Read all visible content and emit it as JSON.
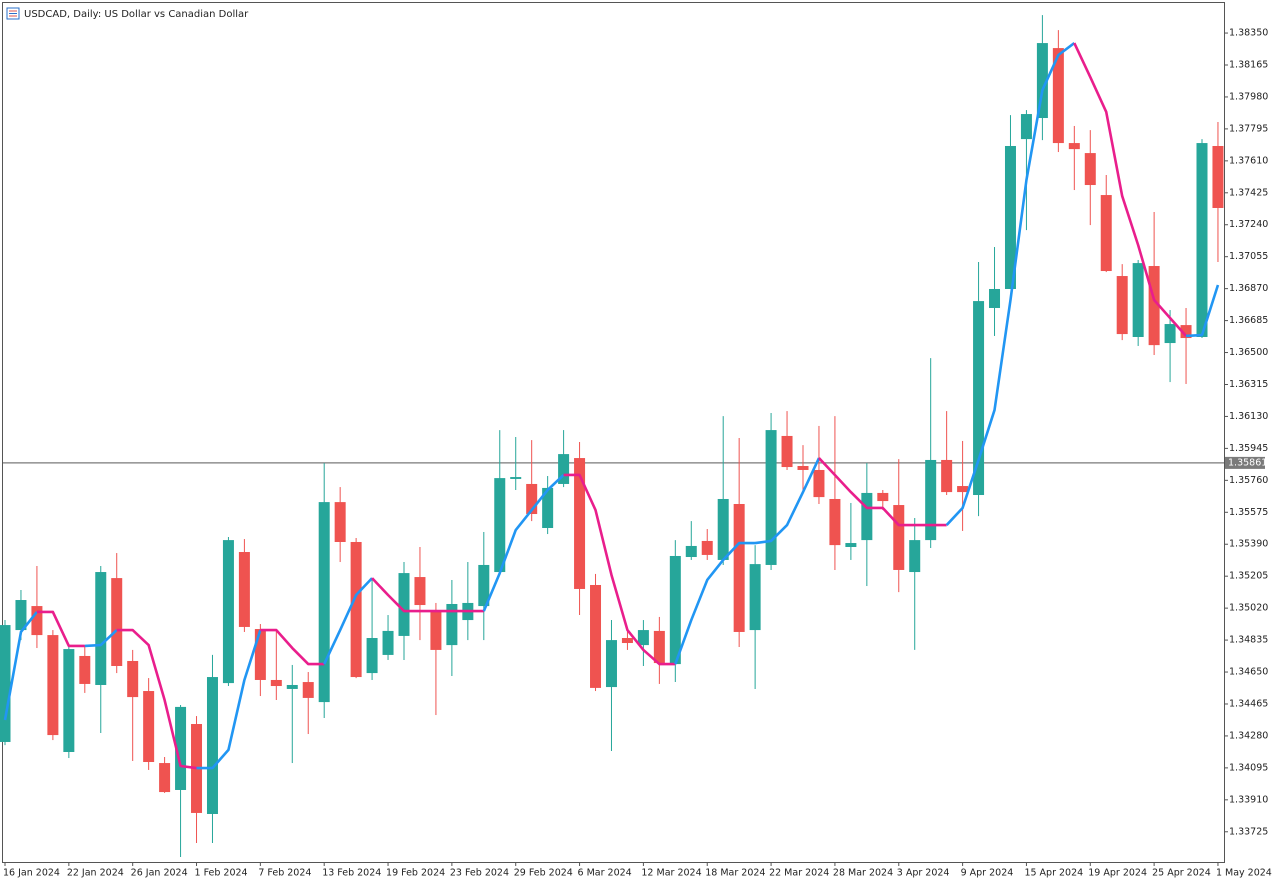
{
  "chart_data": {
    "type": "candlestick",
    "title": "USDCAD, Daily:  US Dollar vs Canadian Dollar",
    "categories": [
      "16 Jan 2024",
      null,
      null,
      null,
      "22 Jan 2024",
      null,
      null,
      null,
      "26 Jan 2024",
      null,
      null,
      null,
      "1 Feb 2024",
      null,
      null,
      null,
      "7 Feb 2024",
      null,
      null,
      null,
      "13 Feb 2024",
      null,
      null,
      null,
      "19 Feb 2024",
      null,
      null,
      null,
      "23 Feb 2024",
      null,
      null,
      null,
      "29 Feb 2024",
      null,
      null,
      null,
      "6 Mar 2024",
      null,
      null,
      null,
      "12 Mar 2024",
      null,
      null,
      null,
      "18 Mar 2024",
      null,
      null,
      null,
      "22 Mar 2024",
      null,
      null,
      null,
      "28 Mar 2024",
      null,
      null,
      null,
      "3 Apr 2024",
      null,
      null,
      null,
      "9 Apr 2024",
      null,
      null,
      null,
      "15 Apr 2024",
      null,
      null,
      null,
      "19 Apr 2024",
      null,
      null,
      null,
      "25 Apr 2024",
      null,
      null,
      null,
      "1 May 2024"
    ],
    "open": [
      1.34245,
      1.34893,
      1.35032,
      1.34864,
      1.34187,
      1.34743,
      1.34575,
      1.35194,
      1.34714,
      1.3454,
      1.34123,
      1.33967,
      1.34349,
      1.33828,
      1.34586,
      1.35345,
      1.34899,
      1.34604,
      1.34552,
      1.34592,
      1.34476,
      1.35634,
      1.35403,
      1.34644,
      1.34749,
      1.34859,
      1.352,
      1.35009,
      1.34806,
      1.34951,
      1.35032,
      1.35229,
      1.35768,
      1.35739,
      1.35484,
      1.35739,
      1.35889,
      1.35154,
      1.34563,
      1.34847,
      1.34806,
      1.34888,
      1.34696,
      1.35316,
      1.35409,
      1.35299,
      1.35623,
      1.34893,
      1.3527,
      1.36017,
      1.35843,
      1.3582,
      1.35652,
      1.35374,
      1.35414,
      1.35687,
      1.35617,
      1.35229,
      1.35414,
      1.35878,
      1.35727,
      1.35675,
      1.36758,
      1.36868,
      1.37736,
      1.37858,
      1.38263,
      1.37713,
      1.37655,
      1.37412,
      1.36943,
      1.3659,
      1.37001,
      1.36555,
      1.36659,
      1.3659,
      1.37696
    ],
    "high": [
      1.34951,
      1.35125,
      1.35264,
      1.34893,
      1.34806,
      1.34806,
      1.35264,
      1.35339,
      1.34778,
      1.34615,
      1.34158,
      1.34459,
      1.34395,
      1.34749,
      1.35432,
      1.3542,
      1.34928,
      1.34893,
      1.34691,
      1.3465,
      1.3586,
      1.35721,
      1.35426,
      1.35194,
      1.3498,
      1.35287,
      1.35374,
      1.3505,
      1.35183,
      1.35287,
      1.35461,
      1.36051,
      1.36011,
      1.35993,
      1.35785,
      1.36051,
      1.35982,
      1.35218,
      1.34951,
      1.34893,
      1.34951,
      1.34969,
      1.35414,
      1.35524,
      1.35478,
      1.36132,
      1.36005,
      1.35385,
      1.3615,
      1.36161,
      1.35964,
      1.36075,
      1.36132,
      1.35629,
      1.3586,
      1.35704,
      1.35883,
      1.35542,
      1.36468,
      1.36161,
      1.35988,
      1.37024,
      1.37111,
      1.37875,
      1.37904,
      1.38454,
      1.38367,
      1.37812,
      1.37788,
      1.37528,
      1.37012,
      1.37036,
      1.37314,
      1.36746,
      1.36758,
      1.37736,
      1.37835
    ],
    "low": [
      1.34227,
      1.34835,
      1.34789,
      1.34256,
      1.34152,
      1.34529,
      1.34297,
      1.34644,
      1.34135,
      1.34083,
      1.3395,
      1.33579,
      1.3366,
      1.3366,
      1.34569,
      1.34882,
      1.34511,
      1.34488,
      1.34123,
      1.34291,
      1.34384,
      1.35287,
      1.34615,
      1.34604,
      1.3472,
      1.3472,
      1.34835,
      1.34401,
      1.34627,
      1.34835,
      1.34835,
      1.35212,
      1.35704,
      1.35524,
      1.35449,
      1.35721,
      1.3498,
      1.3454,
      1.34193,
      1.34778,
      1.34685,
      1.34581,
      1.34592,
      1.35299,
      1.35299,
      1.3527,
      1.34795,
      1.34552,
      1.35241,
      1.3582,
      1.35704,
      1.35623,
      1.35241,
      1.35299,
      1.35148,
      1.35588,
      1.35113,
      1.34778,
      1.35368,
      1.35675,
      1.35467,
      1.35553,
      1.36596,
      1.36868,
      1.37209,
      1.3773,
      1.37661,
      1.37441,
      1.37238,
      1.36966,
      1.36572,
      1.36538,
      1.36486,
      1.36329,
      1.36318,
      1.36584,
      1.37024
    ],
    "close": [
      1.34922,
      1.35067,
      1.34864,
      1.34285,
      1.34783,
      1.34581,
      1.35229,
      1.34685,
      1.34505,
      1.34129,
      1.33955,
      1.34448,
      1.33834,
      1.34621,
      1.35414,
      1.34911,
      1.34604,
      1.34569,
      1.34575,
      1.345,
      1.35634,
      1.35403,
      1.34621,
      1.34847,
      1.34888,
      1.35223,
      1.35038,
      1.34778,
      1.35044,
      1.3505,
      1.3527,
      1.35773,
      1.35779,
      1.35565,
      1.35716,
      1.35912,
      1.35131,
      1.34558,
      1.34835,
      1.34818,
      1.34893,
      1.34702,
      1.35322,
      1.3538,
      1.35328,
      1.35652,
      1.34882,
      1.35275,
      1.36051,
      1.35837,
      1.3582,
      1.35663,
      1.35385,
      1.35397,
      1.35687,
      1.3564,
      1.35241,
      1.35414,
      1.35878,
      1.35692,
      1.35692,
      1.36798,
      1.36868,
      1.37696,
      1.37881,
      1.38292,
      1.37713,
      1.37678,
      1.3747,
      1.36972,
      1.36607,
      1.37018,
      1.36543,
      1.36665,
      1.36584,
      1.37713,
      1.37337
    ],
    "up_color": "#26a69a",
    "down_color": "#ef5350",
    "line": {
      "values": [
        1.34372,
        1.34882,
        1.34998,
        1.34998,
        1.34801,
        1.34801,
        1.34806,
        1.34893,
        1.34893,
        1.34806,
        1.34488,
        1.34106,
        1.34094,
        1.34094,
        1.34199,
        1.34604,
        1.34893,
        1.34893,
        1.34789,
        1.34696,
        1.34696,
        1.34893,
        1.35096,
        1.35194,
        1.35096,
        1.35003,
        1.35003,
        1.35003,
        1.35003,
        1.35003,
        1.35003,
        1.35223,
        1.35472,
        1.35588,
        1.35704,
        1.35791,
        1.35791,
        1.35588,
        1.35212,
        1.34893,
        1.34778,
        1.34696,
        1.34696,
        1.34951,
        1.35183,
        1.35299,
        1.35397,
        1.35397,
        1.35409,
        1.35501,
        1.35692,
        1.35889,
        1.35791,
        1.35692,
        1.356,
        1.356,
        1.35501,
        1.35501,
        1.35501,
        1.35501,
        1.356,
        1.35878,
        1.36167,
        1.36804,
        1.37499,
        1.3802,
        1.38223,
        1.38292,
        1.38095,
        1.37893,
        1.37406,
        1.37122,
        1.36804,
        1.367,
        1.36596,
        1.36601,
        1.36891
      ],
      "colors": [
        "#2196f3",
        "#2196f3",
        "#2196f3",
        "#e91e8c",
        "#e91e8c",
        "#e91e8c",
        "#2196f3",
        "#2196f3",
        "#e91e8c",
        "#e91e8c",
        "#e91e8c",
        "#e91e8c",
        "#e91e8c",
        "#2196f3",
        "#2196f3",
        "#2196f3",
        "#2196f3",
        "#e91e8c",
        "#e91e8c",
        "#e91e8c",
        "#e91e8c",
        "#2196f3",
        "#2196f3",
        "#2196f3",
        "#e91e8c",
        "#e91e8c",
        "#e91e8c",
        "#e91e8c",
        "#e91e8c",
        "#e91e8c",
        "#e91e8c",
        "#2196f3",
        "#2196f3",
        "#2196f3",
        "#2196f3",
        "#2196f3",
        "#e91e8c",
        "#e91e8c",
        "#e91e8c",
        "#e91e8c",
        "#e91e8c",
        "#e91e8c",
        "#e91e8c",
        "#2196f3",
        "#2196f3",
        "#2196f3",
        "#2196f3",
        "#2196f3",
        "#2196f3",
        "#2196f3",
        "#2196f3",
        "#2196f3",
        "#e91e8c",
        "#e91e8c",
        "#e91e8c",
        "#e91e8c",
        "#e91e8c",
        "#e91e8c",
        "#e91e8c",
        "#e91e8c",
        "#2196f3",
        "#2196f3",
        "#2196f3",
        "#2196f3",
        "#2196f3",
        "#2196f3",
        "#2196f3",
        "#2196f3",
        "#e91e8c",
        "#e91e8c",
        "#e91e8c",
        "#e91e8c",
        "#e91e8c",
        "#e91e8c",
        "#e91e8c",
        "#2196f3",
        "#2196f3"
      ]
    },
    "current_price": 1.35861,
    "ylim": [
      1.3355,
      1.38524
    ],
    "yticks": [
      {
        "value": 1.3835,
        "label": "1.38350"
      },
      1.38165,
      {
        "value": 1.3798,
        "label": "1.37980"
      },
      1.37795,
      {
        "value": 1.3761,
        "label": "1.37610"
      },
      1.37425,
      {
        "value": 1.3724,
        "label": "1.37240"
      },
      1.37055,
      {
        "value": 1.3687,
        "label": "1.36870"
      },
      1.36685,
      {
        "value": 1.365,
        "label": "1.36500"
      },
      1.36315,
      {
        "value": 1.3613,
        "label": "1.36130"
      },
      1.35945,
      {
        "value": 1.3576,
        "label": "1.35760"
      },
      1.35575,
      {
        "value": 1.3539,
        "label": "1.35390"
      },
      1.35205,
      {
        "value": 1.3502,
        "label": "1.35020"
      },
      1.34835,
      {
        "value": 1.3465,
        "label": "1.34650"
      },
      1.34465,
      {
        "value": 1.3428,
        "label": "1.34280"
      },
      1.34095,
      {
        "value": 1.3391,
        "label": "1.33910"
      },
      1.33725
    ]
  }
}
